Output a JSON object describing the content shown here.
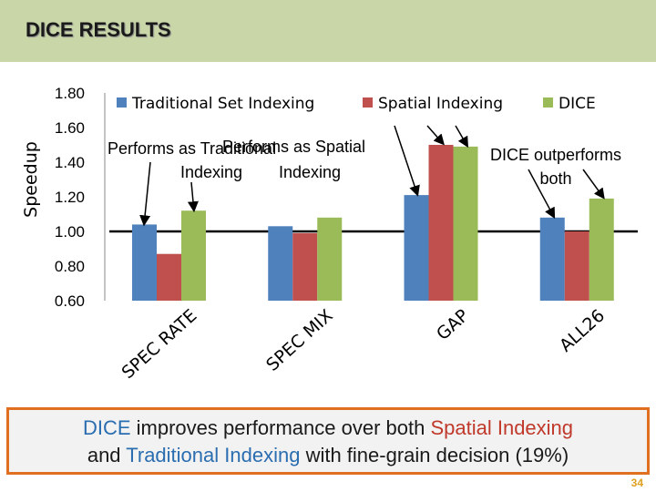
{
  "slide": {
    "title": "DICE RESULTS",
    "page_number": "34",
    "takeaway": {
      "dice": "DICE",
      "t1": " improves performance over both ",
      "spatial": "Spatial Indexing",
      "t2": "and ",
      "traditional": "Traditional Indexing",
      "t3": " with fine-grain decision (19%)"
    }
  },
  "colors": {
    "traditional": "#4f81bd",
    "spatial": "#c0504d",
    "dice": "#9bbb59",
    "accent_border": "#e07020"
  },
  "chart_data": {
    "type": "bar",
    "ylabel": "Speedup",
    "ylim": [
      0.6,
      1.8
    ],
    "yticks": [
      "0.60",
      "0.80",
      "1.00",
      "1.20",
      "1.40",
      "1.60",
      "1.80"
    ],
    "baseline": 1.0,
    "legend_position": "top",
    "categories": [
      "SPEC RATE",
      "SPEC MIX",
      "GAP",
      "ALL26"
    ],
    "series": [
      {
        "name": "Traditional Set Indexing",
        "values": [
          1.04,
          1.03,
          1.21,
          1.08
        ]
      },
      {
        "name": "Spatial Indexing",
        "values": [
          0.87,
          0.99,
          1.5,
          1.0
        ]
      },
      {
        "name": "DICE",
        "values": [
          1.12,
          1.08,
          1.49,
          1.19
        ]
      }
    ],
    "annotations": [
      {
        "lines": [
          "Performs as Traditional",
          "Indexing"
        ]
      },
      {
        "lines": [
          "Performs as Spatial",
          "Indexing"
        ]
      },
      {
        "lines": [
          "DICE outperforms",
          "both"
        ]
      }
    ]
  }
}
